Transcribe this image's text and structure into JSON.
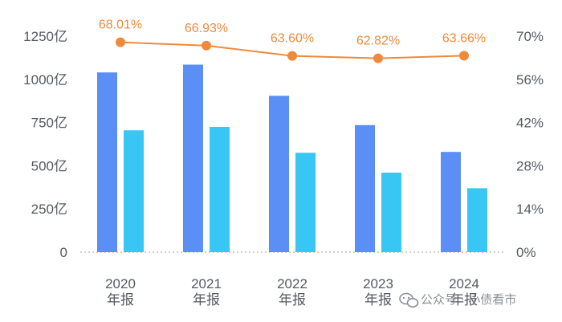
{
  "chart_data": {
    "type": "bar",
    "categories": [
      [
        "2020",
        "年报"
      ],
      [
        "2021",
        "年报"
      ],
      [
        "2022",
        "年报"
      ],
      [
        "2023",
        "年报"
      ],
      [
        "2024",
        "年报"
      ]
    ],
    "series": [
      {
        "values": [
          1040,
          1085,
          905,
          735,
          580
        ],
        "color": "#5b8ff5"
      },
      {
        "values": [
          705,
          725,
          575,
          460,
          370
        ],
        "color": "#38c6f4"
      }
    ],
    "line_series": {
      "type": "line",
      "axis": "right",
      "values": [
        68.01,
        66.93,
        63.6,
        62.82,
        63.66
      ],
      "labels": [
        "68.01%",
        "66.93%",
        "63.60%",
        "62.82%",
        "63.66%"
      ],
      "color": "#ee8a3c"
    },
    "y_left": {
      "ylim": [
        0,
        1250
      ],
      "ticks": [
        "0",
        "250亿",
        "500亿",
        "750亿",
        "1000亿",
        "1250亿"
      ]
    },
    "y_right": {
      "ylim": [
        0,
        70
      ],
      "ticks": [
        "0%",
        "14%",
        "28%",
        "42%",
        "56%",
        "70%"
      ]
    },
    "grid": false,
    "title": "",
    "xlabel": "",
    "ylabel": ""
  },
  "watermark": {
    "icon": "wechat-icon",
    "text": "公众号 · 小债看市"
  }
}
